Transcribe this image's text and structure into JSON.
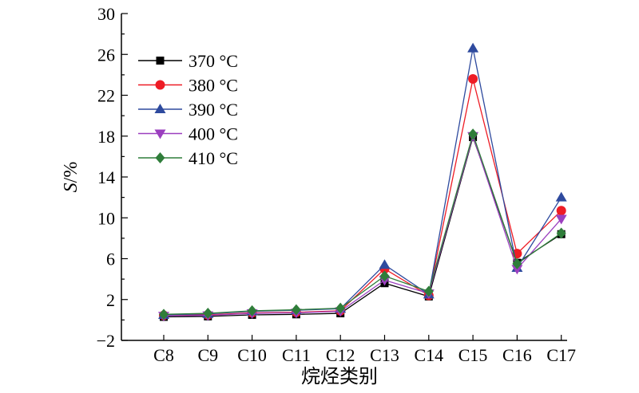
{
  "chart_data": {
    "type": "line",
    "title": "",
    "xlabel": "烷烃类别",
    "ylabel_italic": "S",
    "ylabel_rest": "/%",
    "categories": [
      "C8",
      "C9",
      "C10",
      "C11",
      "C12",
      "C13",
      "C14",
      "C15",
      "C16",
      "C17"
    ],
    "ylim": [
      -2,
      30
    ],
    "yticks": [
      -2,
      2,
      6,
      10,
      14,
      18,
      22,
      26,
      30
    ],
    "grid": false,
    "legend_position": "top-left",
    "series": [
      {
        "name": "370 °C",
        "color": "#000000",
        "marker": "square",
        "values": [
          0.3,
          0.35,
          0.5,
          0.55,
          0.65,
          3.6,
          2.3,
          17.9,
          5.6,
          8.4
        ]
      },
      {
        "name": "380 °C",
        "color": "#ee1c25",
        "marker": "circle",
        "values": [
          0.45,
          0.5,
          0.7,
          0.75,
          0.9,
          5.0,
          2.4,
          23.6,
          6.5,
          10.7
        ]
      },
      {
        "name": "390 °C",
        "color": "#2e4a9e",
        "marker": "triangle-up",
        "values": [
          0.5,
          0.6,
          0.85,
          0.95,
          1.1,
          5.4,
          2.5,
          26.6,
          5.1,
          12.0
        ]
      },
      {
        "name": "400 °C",
        "color": "#9b3fbf",
        "marker": "triangle-down",
        "values": [
          0.4,
          0.45,
          0.65,
          0.7,
          0.85,
          3.9,
          2.6,
          18.0,
          5.0,
          9.9
        ]
      },
      {
        "name": "410 °C",
        "color": "#2f7d3a",
        "marker": "diamond",
        "values": [
          0.55,
          0.65,
          0.9,
          1.0,
          1.15,
          4.3,
          2.8,
          18.2,
          5.5,
          8.5
        ]
      }
    ]
  }
}
